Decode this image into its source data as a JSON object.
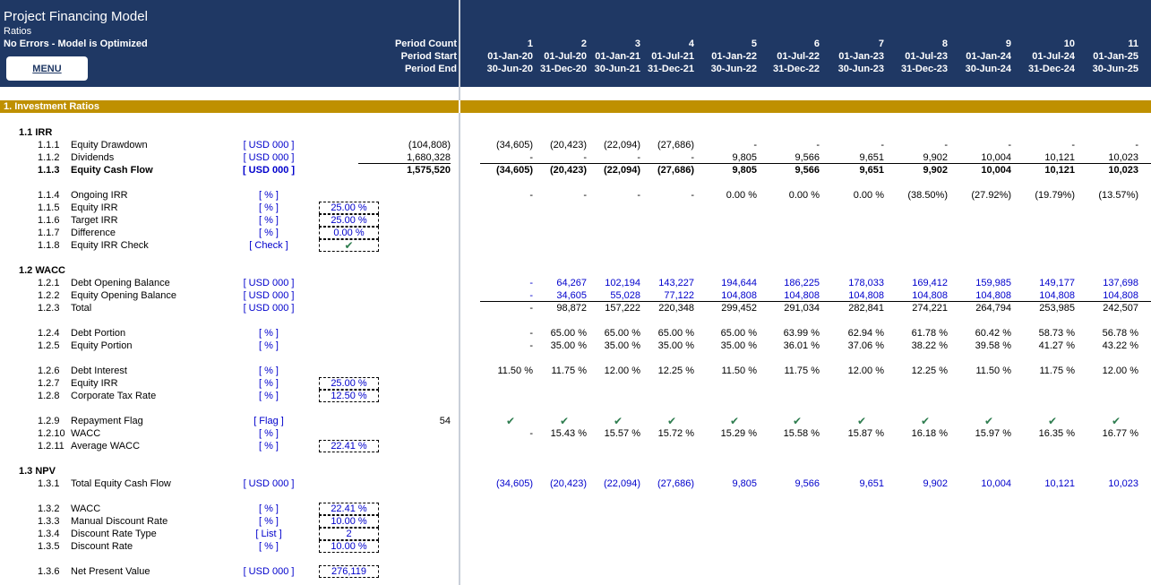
{
  "header": {
    "title": "Project Financing Model",
    "subtitle": "Ratios",
    "status": "No Errors - Model is Optimized",
    "menu_label": "MENU",
    "period_count_label": "Period Count",
    "period_start_label": "Period Start",
    "period_end_label": "Period End",
    "period_count": [
      "1",
      "2",
      "3",
      "4",
      "5",
      "6",
      "7",
      "8",
      "9",
      "10",
      "11"
    ],
    "period_start": [
      "01-Jan-20",
      "01-Jul-20",
      "01-Jan-21",
      "01-Jul-21",
      "01-Jan-22",
      "01-Jul-22",
      "01-Jan-23",
      "01-Jul-23",
      "01-Jan-24",
      "01-Jul-24",
      "01-Jan-25"
    ],
    "period_end": [
      "30-Jun-20",
      "31-Dec-20",
      "30-Jun-21",
      "31-Dec-21",
      "30-Jun-22",
      "31-Dec-22",
      "30-Jun-23",
      "31-Dec-23",
      "30-Jun-24",
      "31-Dec-24",
      "30-Jun-25"
    ]
  },
  "section": {
    "title": "1.  Investment Ratios"
  },
  "groups": {
    "irr": "1.1  IRR",
    "wacc": "1.2  WACC",
    "npv": "1.3  NPV"
  },
  "rows": {
    "r111": {
      "num": "1.1.1",
      "label": "Equity Drawdown",
      "unit": "[ USD 000 ]",
      "total": "(104,808)",
      "values": [
        "(34,605)",
        "(20,423)",
        "(22,094)",
        "(27,686)",
        "-",
        "-",
        "-",
        "-",
        "-",
        "-",
        "-"
      ]
    },
    "r112": {
      "num": "1.1.2",
      "label": "Dividends",
      "unit": "[ USD 000 ]",
      "total": "1,680,328",
      "values": [
        "-",
        "-",
        "-",
        "-",
        "9,805",
        "9,566",
        "9,651",
        "9,902",
        "10,004",
        "10,121",
        "10,023"
      ]
    },
    "r113": {
      "num": "1.1.3",
      "label": "Equity Cash Flow",
      "unit": "[ USD 000 ]",
      "total": "1,575,520",
      "values": [
        "(34,605)",
        "(20,423)",
        "(22,094)",
        "(27,686)",
        "9,805",
        "9,566",
        "9,651",
        "9,902",
        "10,004",
        "10,121",
        "10,023"
      ]
    },
    "r114": {
      "num": "1.1.4",
      "label": "Ongoing IRR",
      "unit": "[ % ]",
      "values": [
        "-",
        "-",
        "-",
        "-",
        "0.00 %",
        "0.00 %",
        "0.00 %",
        "(38.50%)",
        "(27.92%)",
        "(19.79%)",
        "(13.57%)"
      ]
    },
    "r115": {
      "num": "1.1.5",
      "label": "Equity IRR",
      "unit": "[ % ]",
      "box": "25.00 %"
    },
    "r116": {
      "num": "1.1.6",
      "label": "Target IRR",
      "unit": "[ % ]",
      "box": "25.00 %"
    },
    "r117": {
      "num": "1.1.7",
      "label": "Difference",
      "unit": "[ % ]",
      "box": "0.00 %"
    },
    "r118": {
      "num": "1.1.8",
      "label": "Equity IRR Check",
      "unit": "[ Check ]",
      "box": "✔"
    },
    "r121": {
      "num": "1.2.1",
      "label": "Debt Opening Balance",
      "unit": "[ USD 000 ]",
      "values": [
        "-",
        "64,267",
        "102,194",
        "143,227",
        "194,644",
        "186,225",
        "178,033",
        "169,412",
        "159,985",
        "149,177",
        "137,698"
      ]
    },
    "r122": {
      "num": "1.2.2",
      "label": "Equity Opening Balance",
      "unit": "[ USD 000 ]",
      "values": [
        "-",
        "34,605",
        "55,028",
        "77,122",
        "104,808",
        "104,808",
        "104,808",
        "104,808",
        "104,808",
        "104,808",
        "104,808"
      ]
    },
    "r123": {
      "num": "1.2.3",
      "label": "Total",
      "unit": "[ USD 000 ]",
      "values": [
        "-",
        "98,872",
        "157,222",
        "220,348",
        "299,452",
        "291,034",
        "282,841",
        "274,221",
        "264,794",
        "253,985",
        "242,507"
      ]
    },
    "r124": {
      "num": "1.2.4",
      "label": "Debt Portion",
      "unit": "[ % ]",
      "values": [
        "-",
        "65.00 %",
        "65.00 %",
        "65.00 %",
        "65.00 %",
        "63.99 %",
        "62.94 %",
        "61.78 %",
        "60.42 %",
        "58.73 %",
        "56.78 %"
      ]
    },
    "r125": {
      "num": "1.2.5",
      "label": "Equity Portion",
      "unit": "[ % ]",
      "values": [
        "-",
        "35.00 %",
        "35.00 %",
        "35.00 %",
        "35.00 %",
        "36.01 %",
        "37.06 %",
        "38.22 %",
        "39.58 %",
        "41.27 %",
        "43.22 %"
      ]
    },
    "r126": {
      "num": "1.2.6",
      "label": "Debt Interest",
      "unit": "[ % ]",
      "values": [
        "11.50 %",
        "11.75 %",
        "12.00 %",
        "12.25 %",
        "11.50 %",
        "11.75 %",
        "12.00 %",
        "12.25 %",
        "11.50 %",
        "11.75 %",
        "12.00 %"
      ]
    },
    "r127": {
      "num": "1.2.7",
      "label": "Equity IRR",
      "unit": "[ % ]",
      "box": "25.00 %"
    },
    "r128": {
      "num": "1.2.8",
      "label": "Corporate Tax Rate",
      "unit": "[ % ]",
      "box": "12.50 %"
    },
    "r129": {
      "num": "1.2.9",
      "label": "Repayment Flag",
      "unit": "[ Flag ]",
      "total": "54",
      "values": [
        "✔",
        "✔",
        "✔",
        "✔",
        "✔",
        "✔",
        "✔",
        "✔",
        "✔",
        "✔",
        "✔"
      ]
    },
    "r1210": {
      "num": "1.2.10",
      "label": "WACC",
      "unit": "[ % ]",
      "values": [
        "-",
        "15.43 %",
        "15.57 %",
        "15.72 %",
        "15.29 %",
        "15.58 %",
        "15.87 %",
        "16.18 %",
        "15.97 %",
        "16.35 %",
        "16.77 %"
      ]
    },
    "r1211": {
      "num": "1.2.11",
      "label": "Average WACC",
      "unit": "[ % ]",
      "box": "22.41 %"
    },
    "r131": {
      "num": "1.3.1",
      "label": "Total Equity Cash Flow",
      "unit": "[ USD 000 ]",
      "values": [
        "(34,605)",
        "(20,423)",
        "(22,094)",
        "(27,686)",
        "9,805",
        "9,566",
        "9,651",
        "9,902",
        "10,004",
        "10,121",
        "10,023"
      ]
    },
    "r132": {
      "num": "1.3.2",
      "label": "WACC",
      "unit": "[ % ]",
      "box": "22.41 %"
    },
    "r133": {
      "num": "1.3.3",
      "label": "Manual Discount Rate",
      "unit": "[ % ]",
      "box": "10.00 %"
    },
    "r134": {
      "num": "1.3.4",
      "label": "Discount Rate Type",
      "unit": "[ List ]",
      "box": "2"
    },
    "r135": {
      "num": "1.3.5",
      "label": "Discount Rate",
      "unit": "[ % ]",
      "box": "10.00 %"
    },
    "r136": {
      "num": "1.3.6",
      "label": "Net Present Value",
      "unit": "[ USD 000 ]",
      "box": "276,119"
    }
  }
}
